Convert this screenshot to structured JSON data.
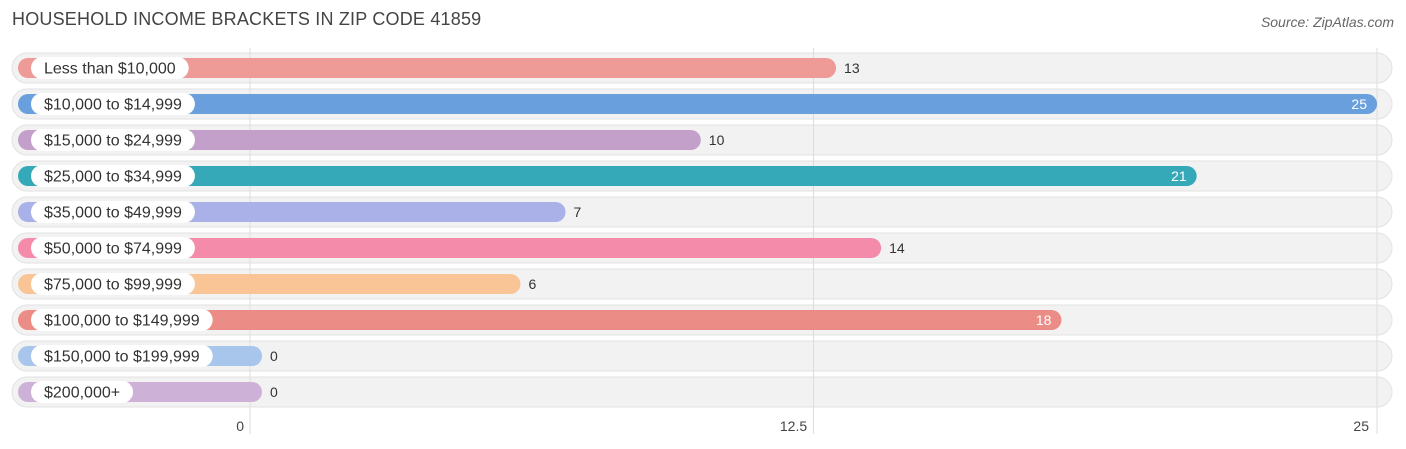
{
  "header": {
    "title": "HOUSEHOLD INCOME BRACKETS IN ZIP CODE 41859",
    "source": "Source: ZipAtlas.com"
  },
  "chart_data": {
    "type": "bar",
    "orientation": "horizontal",
    "title": "HOUSEHOLD INCOME BRACKETS IN ZIP CODE 41859",
    "categories": [
      "Less than $10,000",
      "$10,000 to $14,999",
      "$15,000 to $24,999",
      "$25,000 to $34,999",
      "$35,000 to $49,999",
      "$50,000 to $74,999",
      "$75,000 to $99,999",
      "$100,000 to $149,999",
      "$150,000 to $199,999",
      "$200,000+"
    ],
    "values": [
      13,
      25,
      10,
      21,
      7,
      14,
      6,
      18,
      0,
      0
    ],
    "colors": [
      "#ee9a97",
      "#6a9fde",
      "#c3a0ca",
      "#36a9b9",
      "#a9b1e8",
      "#f48bab",
      "#f9c597",
      "#ec8c86",
      "#a8c6ec",
      "#cdb1d6"
    ],
    "value_label_inside": [
      false,
      true,
      false,
      true,
      false,
      false,
      false,
      true,
      false,
      false
    ],
    "xlim": [
      0,
      25
    ],
    "xticks": [
      0,
      12.5,
      25
    ],
    "xtick_labels": [
      "0",
      "12.5",
      "25"
    ],
    "grid": true
  }
}
